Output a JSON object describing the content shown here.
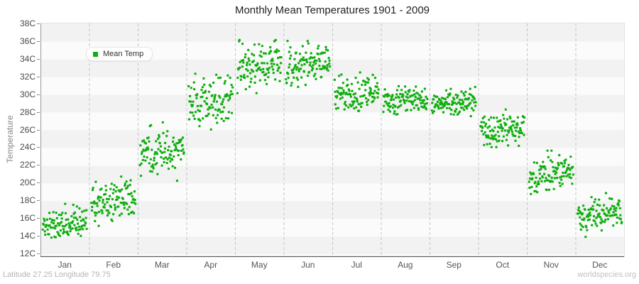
{
  "title": "Monthly Mean Temperatures 1901 - 2009",
  "legend": {
    "label": "Mean Temp"
  },
  "y_axis": {
    "label": "Temperature",
    "ticks": [
      "38C",
      "36C",
      "34C",
      "32C",
      "30C",
      "28C",
      "26C",
      "24C",
      "22C",
      "20C",
      "18C",
      "16C",
      "14C",
      "12C"
    ],
    "min": 12,
    "max": 38,
    "step": 2
  },
  "x_axis": {
    "months": [
      "Jan",
      "Feb",
      "Mar",
      "Apr",
      "May",
      "Jun",
      "Jul",
      "Aug",
      "Sep",
      "Oct",
      "Nov",
      "Dec"
    ]
  },
  "footer": {
    "left": "Latitude 27.25 Longitude 79.75",
    "right": "worldspecies.org"
  },
  "colors": {
    "point": "#0fae0f",
    "band_dark": "#f2f2f2",
    "band_light": "#fbfbfb",
    "grid_dash": "#c5c5c5",
    "axis_left": "#999999",
    "axis_bottom": "#555555"
  },
  "chart_data": {
    "type": "scatter",
    "title": "Monthly Mean Temperatures 1901 - 2009",
    "xlabel": "",
    "ylabel": "Temperature",
    "ylim": [
      12,
      38
    ],
    "grid": "horizontal-bands-and-dashed-month-separators",
    "legend_position": "top-left",
    "x_categories": [
      "Jan",
      "Feb",
      "Mar",
      "Apr",
      "May",
      "Jun",
      "Jul",
      "Aug",
      "Sep",
      "Oct",
      "Nov",
      "Dec"
    ],
    "year_range": "1901 - 2009",
    "points_per_month": 109,
    "seed": 20090131,
    "series": [
      {
        "name": "Mean Temp",
        "color": "#0fae0f",
        "monthly_stats": [
          {
            "month": "Jan",
            "mean_c": 15.4,
            "sd_c": 0.95,
            "min_c": 12.9,
            "max_c": 17.9,
            "trend_c_over_period": 0.9
          },
          {
            "month": "Feb",
            "mean_c": 17.9,
            "sd_c": 1.1,
            "min_c": 15.2,
            "max_c": 21.0,
            "trend_c_over_period": 1.2
          },
          {
            "month": "Mar",
            "mean_c": 23.4,
            "sd_c": 1.25,
            "min_c": 20.3,
            "max_c": 26.9,
            "trend_c_over_period": 0.8
          },
          {
            "month": "Apr",
            "mean_c": 29.3,
            "sd_c": 1.3,
            "min_c": 26.1,
            "max_c": 32.6,
            "trend_c_over_period": 0.6
          },
          {
            "month": "May",
            "mean_c": 33.4,
            "sd_c": 1.2,
            "min_c": 30.2,
            "max_c": 36.2,
            "trend_c_over_period": 0.4
          },
          {
            "month": "Jun",
            "mean_c": 33.4,
            "sd_c": 1.15,
            "min_c": 30.5,
            "max_c": 36.1,
            "trend_c_over_period": 0.3
          },
          {
            "month": "Jul",
            "mean_c": 30.1,
            "sd_c": 1.0,
            "min_c": 28.2,
            "max_c": 33.4,
            "trend_c_over_period": 0.4
          },
          {
            "month": "Aug",
            "mean_c": 29.3,
            "sd_c": 0.75,
            "min_c": 27.8,
            "max_c": 31.2,
            "trend_c_over_period": 0.4
          },
          {
            "month": "Sep",
            "mean_c": 29.1,
            "sd_c": 0.7,
            "min_c": 27.6,
            "max_c": 30.9,
            "trend_c_over_period": 0.4
          },
          {
            "month": "Oct",
            "mean_c": 26.1,
            "sd_c": 0.85,
            "min_c": 24.1,
            "max_c": 28.8,
            "trend_c_over_period": 0.7
          },
          {
            "month": "Nov",
            "mean_c": 21.0,
            "sd_c": 1.0,
            "min_c": 18.8,
            "max_c": 23.7,
            "trend_c_over_period": 1.3
          },
          {
            "month": "Dec",
            "mean_c": 16.3,
            "sd_c": 1.0,
            "min_c": 13.4,
            "max_c": 18.9,
            "trend_c_over_period": 1.0
          }
        ]
      }
    ]
  }
}
